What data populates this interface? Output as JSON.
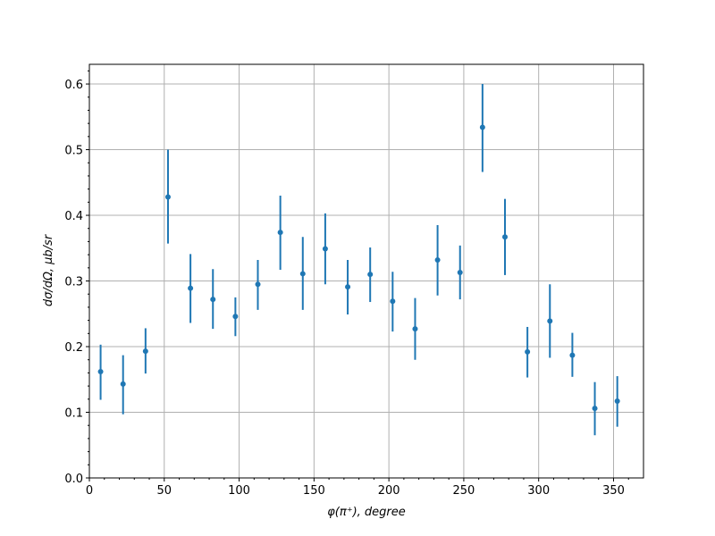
{
  "chart_data": {
    "type": "scatter",
    "xlabel": "φ(π⁺), degree",
    "ylabel": "dσ/dΩ, μb/sr",
    "xlim": [
      0,
      370
    ],
    "ylim": [
      0,
      0.63
    ],
    "xticks": [
      0,
      50,
      100,
      150,
      200,
      250,
      300,
      350
    ],
    "yticks": [
      0.0,
      0.1,
      0.2,
      0.3,
      0.4,
      0.5,
      0.6
    ],
    "xtick_labels": [
      "0",
      "50",
      "100",
      "150",
      "200",
      "250",
      "300",
      "350"
    ],
    "ytick_labels": [
      "0.0",
      "0.1",
      "0.2",
      "0.3",
      "0.4",
      "0.5",
      "0.6"
    ],
    "grid": true,
    "color": "#1f77b4",
    "points": [
      {
        "x": 7.5,
        "y": 0.162,
        "lo": 0.119,
        "hi": 0.203
      },
      {
        "x": 22.5,
        "y": 0.143,
        "lo": 0.097,
        "hi": 0.187
      },
      {
        "x": 37.5,
        "y": 0.193,
        "lo": 0.159,
        "hi": 0.228
      },
      {
        "x": 52.5,
        "y": 0.428,
        "lo": 0.357,
        "hi": 0.5
      },
      {
        "x": 67.5,
        "y": 0.289,
        "lo": 0.236,
        "hi": 0.341
      },
      {
        "x": 82.5,
        "y": 0.272,
        "lo": 0.227,
        "hi": 0.318
      },
      {
        "x": 97.5,
        "y": 0.246,
        "lo": 0.216,
        "hi": 0.275
      },
      {
        "x": 112.5,
        "y": 0.295,
        "lo": 0.256,
        "hi": 0.332
      },
      {
        "x": 127.5,
        "y": 0.374,
        "lo": 0.317,
        "hi": 0.43
      },
      {
        "x": 142.5,
        "y": 0.311,
        "lo": 0.256,
        "hi": 0.367
      },
      {
        "x": 157.5,
        "y": 0.349,
        "lo": 0.295,
        "hi": 0.403
      },
      {
        "x": 172.5,
        "y": 0.291,
        "lo": 0.249,
        "hi": 0.332
      },
      {
        "x": 187.5,
        "y": 0.31,
        "lo": 0.268,
        "hi": 0.351
      },
      {
        "x": 202.5,
        "y": 0.269,
        "lo": 0.223,
        "hi": 0.314
      },
      {
        "x": 217.5,
        "y": 0.227,
        "lo": 0.18,
        "hi": 0.274
      },
      {
        "x": 232.5,
        "y": 0.332,
        "lo": 0.278,
        "hi": 0.385
      },
      {
        "x": 247.5,
        "y": 0.313,
        "lo": 0.272,
        "hi": 0.354
      },
      {
        "x": 262.5,
        "y": 0.534,
        "lo": 0.466,
        "hi": 0.6
      },
      {
        "x": 277.5,
        "y": 0.367,
        "lo": 0.309,
        "hi": 0.425
      },
      {
        "x": 292.5,
        "y": 0.192,
        "lo": 0.153,
        "hi": 0.23
      },
      {
        "x": 307.5,
        "y": 0.239,
        "lo": 0.183,
        "hi": 0.295
      },
      {
        "x": 322.5,
        "y": 0.187,
        "lo": 0.154,
        "hi": 0.221
      },
      {
        "x": 337.5,
        "y": 0.106,
        "lo": 0.065,
        "hi": 0.146
      },
      {
        "x": 352.5,
        "y": 0.117,
        "lo": 0.078,
        "hi": 0.155
      }
    ]
  }
}
